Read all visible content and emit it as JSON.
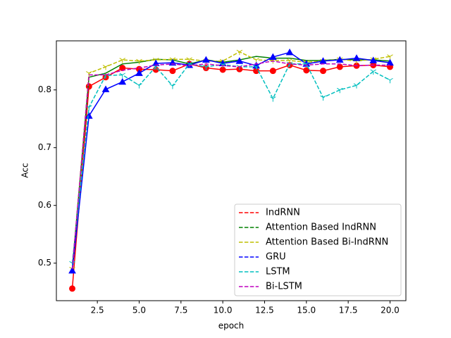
{
  "chart_data": {
    "type": "line",
    "xlabel": "epoch",
    "ylabel": "Acc",
    "x": [
      1,
      2,
      3,
      4,
      5,
      6,
      7,
      8,
      9,
      10,
      11,
      12,
      13,
      14,
      15,
      16,
      17,
      18,
      19,
      20
    ],
    "xlim": [
      0.05,
      20.95
    ],
    "xticks": [
      2.5,
      {
        "value": 5,
        "label": "5.0"
      },
      7.5,
      {
        "value": 10,
        "label": "10.0"
      },
      12.5,
      {
        "value": 15,
        "label": "15.0"
      },
      17.5,
      {
        "value": 20,
        "label": "20.0"
      }
    ],
    "ylim": [
      0.435,
      0.885
    ],
    "yticks": [
      0.5,
      0.6,
      0.7,
      0.8
    ],
    "legend": "lower right",
    "legend_linestyle": "dashed",
    "series": [
      {
        "name": "IndRNN",
        "color": "#ff0000",
        "linestyle": "solid",
        "marker": "circle",
        "values": [
          0.456,
          0.806,
          0.822,
          0.838,
          0.836,
          0.835,
          0.833,
          0.845,
          0.838,
          0.835,
          0.836,
          0.833,
          0.833,
          0.843,
          0.834,
          0.833,
          0.84,
          0.842,
          0.843,
          0.84
        ]
      },
      {
        "name": "Attention Based IndRNN",
        "color": "#008000",
        "linestyle": "solid",
        "marker": "none",
        "values": [
          0.49,
          0.822,
          0.829,
          0.845,
          0.848,
          0.853,
          0.852,
          0.845,
          0.852,
          0.848,
          0.852,
          0.858,
          0.855,
          0.855,
          0.851,
          0.851,
          0.853,
          0.852,
          0.852,
          0.85
        ]
      },
      {
        "name": "Attention Based Bi-IndRNN",
        "color": "#bfbf00",
        "linestyle": "dashed",
        "marker": "tri",
        "values": [
          0.49,
          0.829,
          0.84,
          0.852,
          0.85,
          0.852,
          0.853,
          0.853,
          0.85,
          0.85,
          0.866,
          0.852,
          0.851,
          0.851,
          0.848,
          0.85,
          0.853,
          0.85,
          0.853,
          0.858
        ]
      },
      {
        "name": "GRU",
        "color": "#0000ff",
        "linestyle": "solid",
        "marker": "triangle",
        "values": [
          0.487,
          0.755,
          0.801,
          0.814,
          0.829,
          0.846,
          0.847,
          0.843,
          0.852,
          0.846,
          0.85,
          0.842,
          0.857,
          0.865,
          0.845,
          0.85,
          0.852,
          0.855,
          0.851,
          0.847
        ]
      },
      {
        "name": "LSTM",
        "color": "#00bfbf",
        "linestyle": "dashed",
        "marker": "tri",
        "values": [
          0.5,
          0.77,
          0.825,
          0.826,
          0.808,
          0.84,
          0.807,
          0.845,
          0.84,
          0.844,
          0.84,
          0.84,
          0.785,
          0.845,
          0.845,
          0.787,
          0.8,
          0.808,
          0.832,
          0.817
        ]
      },
      {
        "name": "Bi-LSTM",
        "color": "#bf00bf",
        "linestyle": "dashed",
        "marker": "none",
        "values": [
          0.49,
          0.826,
          0.826,
          0.834,
          0.838,
          0.843,
          0.845,
          0.842,
          0.845,
          0.842,
          0.84,
          0.845,
          0.85,
          0.845,
          0.843,
          0.845,
          0.845,
          0.842,
          0.843,
          0.843
        ]
      }
    ]
  }
}
